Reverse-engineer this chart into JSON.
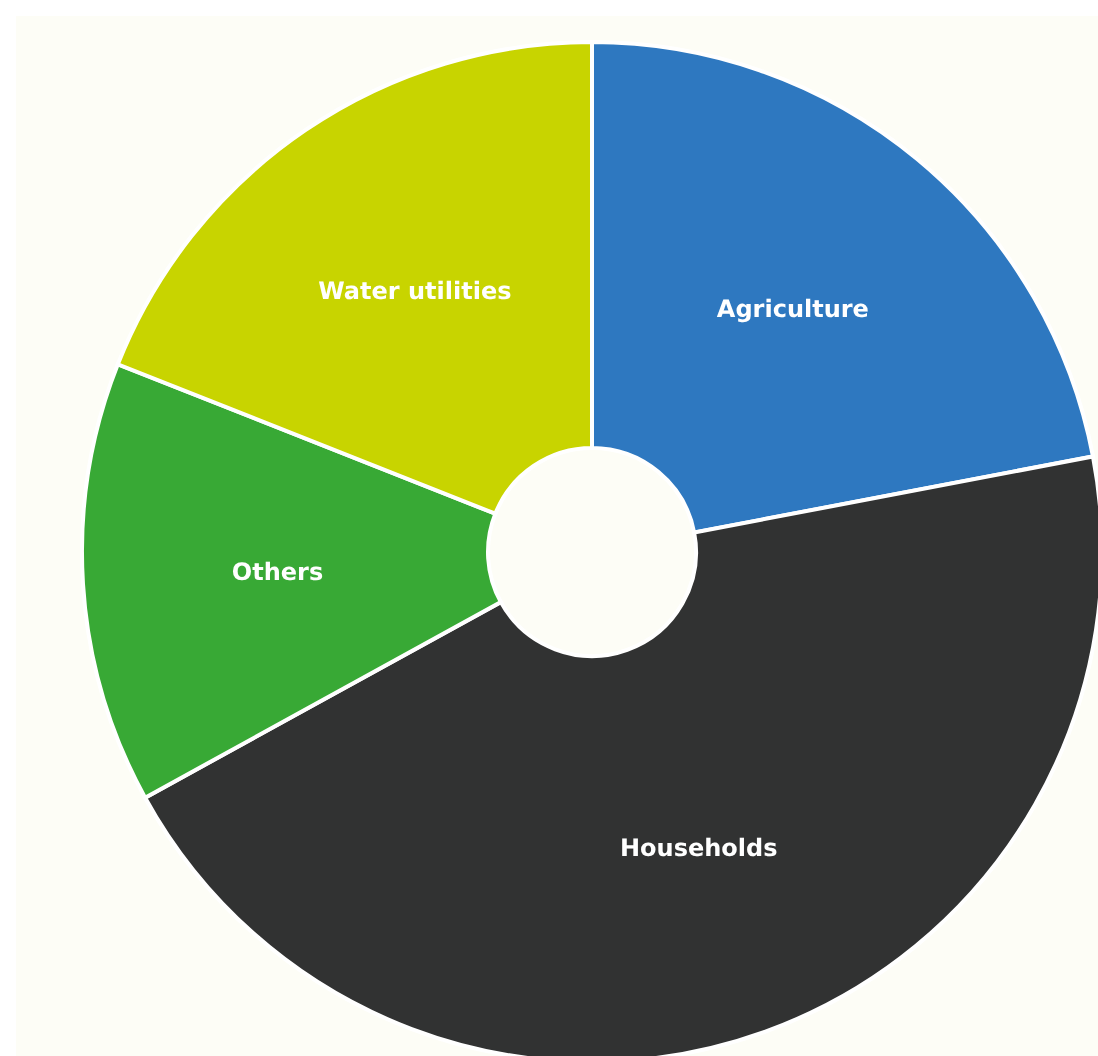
{
  "chart_data": {
    "type": "donut",
    "categories": [
      "Agriculture",
      "Households",
      "Others",
      "Water utilities"
    ],
    "values": [
      22,
      45,
      14,
      19
    ],
    "colors": [
      "#2e78c0",
      "#313232",
      "#38a935",
      "#c8d400"
    ],
    "legend": false
  }
}
